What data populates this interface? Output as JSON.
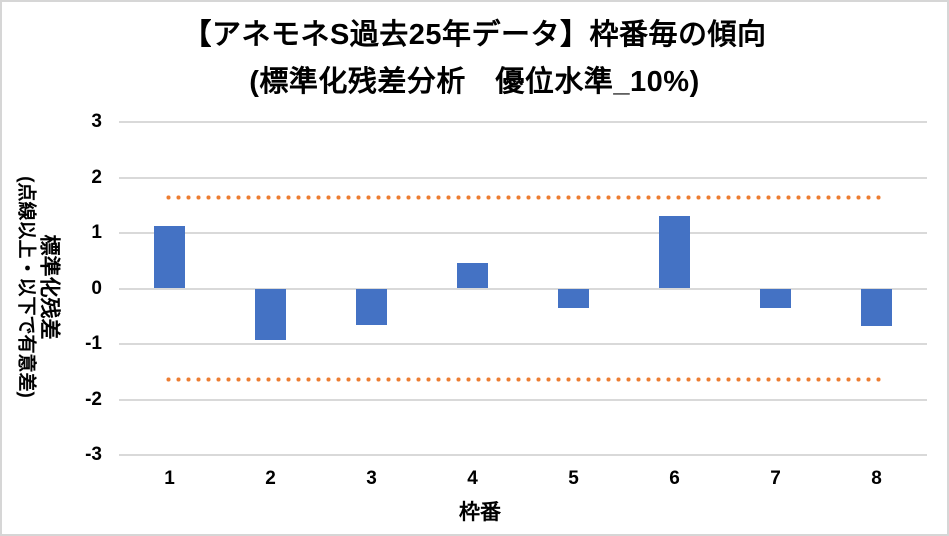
{
  "title": {
    "line1": "【アネモネS過去25年データ】枠番毎の傾向",
    "line2": "(標準化残差分析　優位水準_10%)"
  },
  "y_axis": {
    "title_main": "標準化残差",
    "title_sub": "(点線以上・以下で有意差)"
  },
  "x_axis": {
    "title": "枠番"
  },
  "colors": {
    "bar": "#4472C4",
    "significance_line": "#ED7D31",
    "gridline": "#D9D9D9",
    "text": "#000000",
    "frame_border": "#D6D6D6"
  },
  "chart_data": {
    "type": "bar",
    "title": "【アネモネS過去25年データ】枠番毎の傾向 (標準化残差分析　優位水準_10%)",
    "xlabel": "枠番",
    "ylabel": "標準化残差 (点線以上・以下で有意差)",
    "categories": [
      "1",
      "2",
      "3",
      "4",
      "5",
      "6",
      "7",
      "8"
    ],
    "values": [
      1.12,
      -0.92,
      -0.65,
      0.46,
      -0.35,
      1.3,
      -0.35,
      -0.67
    ],
    "ylim": [
      -3,
      3
    ],
    "yticks": [
      3,
      2,
      1,
      0,
      -1,
      -2,
      -3
    ],
    "grid": true,
    "legend": false,
    "significance_lines": {
      "upper": 1.645,
      "lower": -1.645,
      "style": "dotted",
      "color": "#ED7D31"
    }
  }
}
